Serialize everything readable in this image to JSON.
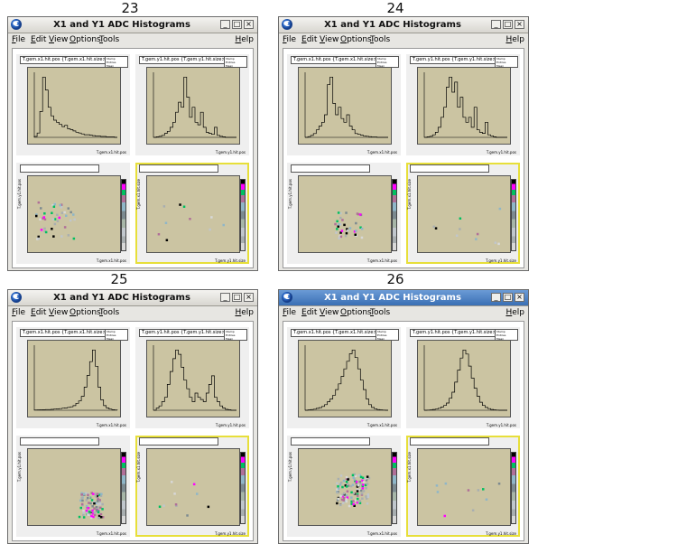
{
  "captions": [
    "23",
    "24",
    "25",
    "26"
  ],
  "window": {
    "title": "X1 and Y1 ADC Histograms",
    "menu": [
      "File",
      "Edit",
      "View",
      "Options",
      "Tools"
    ],
    "help": "Help",
    "buttons": [
      "_",
      "□",
      "×"
    ]
  },
  "pads": {
    "top_left": {
      "title": "T.gem.x1.hit.pos {T.gem.x1.hit.size>1}",
      "xlabel": "T.gem.x1.hit.pos",
      "stats": [
        "htemp",
        "Entries",
        "Mean",
        "RMS"
      ]
    },
    "top_right": {
      "title": "T.gem.y1.hit.pos {T.gem.y1.hit.size>1}",
      "xlabel": "T.gem.y1.hit.pos",
      "stats": [
        "htemp",
        "Entries",
        "Mean",
        "RMS"
      ]
    },
    "bottom_left": {
      "xlabel": "T.gem.x1.hit.pos",
      "ylabel": "T.gem.y1.hit.pos"
    },
    "bottom_right": {
      "xlabel": "T.gem.y1.hit.size",
      "ylabel": "T.gem.x1.hit.size"
    }
  },
  "active_window_index": 3,
  "chart_data": [
    {
      "panel": "23",
      "type": "bar",
      "series": [
        {
          "name": "T.gem.x1.hit.pos",
          "values": [
            2,
            10,
            60,
            140,
            110,
            70,
            50,
            40,
            35,
            30,
            25,
            28,
            20,
            18,
            15,
            12,
            10,
            8,
            6,
            6,
            5,
            4,
            3,
            3,
            2,
            2,
            1,
            1,
            1,
            0
          ]
        },
        {
          "name": "T.gem.y1.hit.pos",
          "values": [
            0,
            1,
            2,
            4,
            8,
            12,
            20,
            30,
            50,
            70,
            60,
            120,
            80,
            40,
            60,
            30,
            25,
            50,
            20,
            10,
            8,
            6,
            20,
            4,
            2,
            1,
            0,
            0,
            0,
            0
          ]
        }
      ]
    },
    {
      "panel": "24",
      "type": "bar",
      "series": [
        {
          "name": "T.gem.x1.hit.pos",
          "values": [
            0,
            2,
            5,
            10,
            20,
            30,
            40,
            60,
            140,
            160,
            90,
            60,
            80,
            50,
            40,
            60,
            30,
            20,
            10,
            8,
            6,
            4,
            3,
            2,
            1,
            1,
            0,
            0,
            0,
            0
          ]
        },
        {
          "name": "T.gem.y1.hit.pos",
          "values": [
            0,
            1,
            2,
            5,
            10,
            20,
            40,
            60,
            100,
            120,
            90,
            110,
            60,
            80,
            40,
            30,
            40,
            20,
            60,
            15,
            10,
            8,
            30,
            5,
            3,
            1,
            0,
            0,
            0,
            0
          ]
        }
      ]
    },
    {
      "panel": "25",
      "type": "bar",
      "series": [
        {
          "name": "T.gem.x1.hit.pos",
          "values": [
            2,
            3,
            4,
            5,
            6,
            6,
            8,
            10,
            12,
            14,
            18,
            20,
            25,
            30,
            40,
            60,
            80,
            120,
            200,
            300,
            420,
            520,
            380,
            200,
            90,
            40,
            20,
            10,
            5,
            2
          ]
        },
        {
          "name": "T.gem.y1.hit.pos",
          "values": [
            0,
            5,
            10,
            20,
            30,
            60,
            90,
            120,
            140,
            130,
            100,
            70,
            50,
            30,
            20,
            40,
            30,
            25,
            20,
            40,
            60,
            80,
            30,
            20,
            10,
            5,
            2,
            1,
            0,
            0
          ]
        }
      ]
    },
    {
      "panel": "26",
      "type": "bar",
      "series": [
        {
          "name": "T.gem.x1.hit.pos",
          "values": [
            0,
            2,
            4,
            6,
            10,
            14,
            20,
            30,
            45,
            60,
            80,
            110,
            140,
            180,
            220,
            260,
            300,
            320,
            280,
            220,
            160,
            110,
            60,
            30,
            15,
            8,
            4,
            2,
            1,
            0
          ]
        },
        {
          "name": "T.gem.y1.hit.pos",
          "values": [
            0,
            1,
            2,
            4,
            6,
            10,
            16,
            24,
            36,
            60,
            90,
            140,
            200,
            260,
            300,
            280,
            220,
            160,
            110,
            70,
            40,
            24,
            14,
            8,
            4,
            2,
            1,
            0,
            0,
            0
          ]
        }
      ]
    }
  ]
}
